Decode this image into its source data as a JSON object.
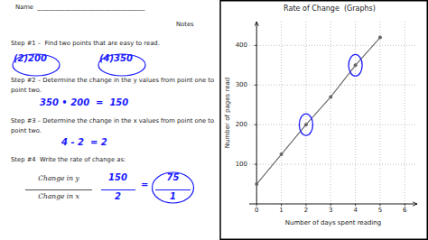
{
  "chart_data": {
    "type": "line",
    "title": "Rate of Change  (Graphs)",
    "x_label": "Number of days spent reading",
    "y_label": "Number of pages read",
    "x": [
      0,
      1,
      2,
      3,
      4,
      5
    ],
    "values": [
      50,
      125,
      200,
      270,
      350,
      420
    ],
    "xlim": [
      -0.3,
      6.5
    ],
    "ylim": [
      0,
      460
    ],
    "xticks": [
      0,
      1,
      2,
      3,
      4,
      5,
      6
    ],
    "yticks": [
      100,
      200,
      300,
      400
    ],
    "grid": true,
    "color": "#666666",
    "marker": "circle",
    "line_style": "solid",
    "highlighted_points": [
      [
        2,
        200
      ],
      [
        4,
        350
      ]
    ],
    "highlight_color": "#1a1aff",
    "annotations": [
      "Name  ___________________________________",
      "Notes",
      "Step #1 –  Find two points that are easy to read.",
      "(2)200",
      "(4)350",
      "Step #2 – Determine the change in the y values from point one to",
      "point two.",
      "350 • 200  =  150",
      "Step #3 – Determine the change in the x values from point one to",
      "point two.",
      "4 - 2  = 2",
      "Step #4  Write the rate of change as:",
      "Change in y",
      "Change in x",
      "150",
      "2",
      "=",
      "75",
      "1"
    ]
  }
}
